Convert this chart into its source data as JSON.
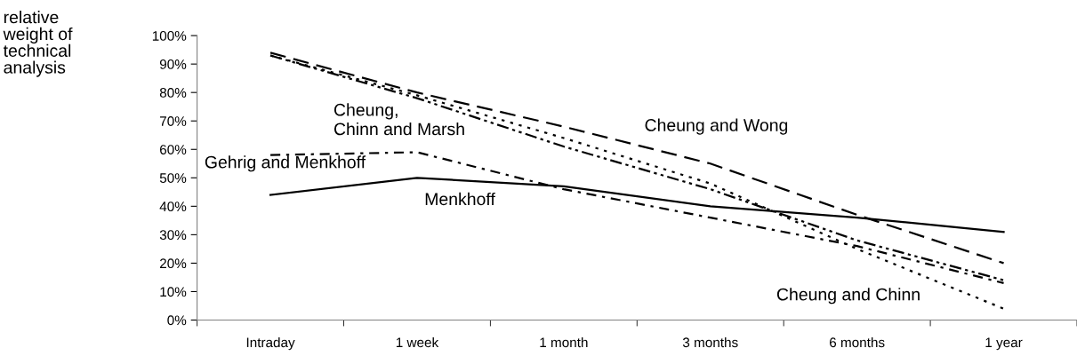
{
  "chart_data": {
    "type": "line",
    "ylabel": "relative weight of technical analysis",
    "categories": [
      "Intraday",
      "1 week",
      "1 month",
      "3 months",
      "6 months",
      "1 year"
    ],
    "series": [
      {
        "name": "Menkhoff",
        "color": "#000000",
        "line_style": "solid",
        "values": [
          44,
          50,
          47,
          40,
          36,
          31
        ]
      },
      {
        "name": "Cheung and Wong",
        "color": "#000000",
        "line_style": "dashed",
        "values": [
          94,
          80,
          68,
          55,
          37,
          20
        ]
      },
      {
        "name": "Cheung and Chinn",
        "color": "#000000",
        "line_style": "dotted",
        "values": [
          93,
          79,
          64,
          48,
          25,
          4
        ]
      },
      {
        "name": "Cheung,\nChinn and Marsh",
        "color": "#000000",
        "line_style": "dashdotdot",
        "values": [
          93,
          78,
          61,
          46,
          28,
          14
        ]
      },
      {
        "name": "Gehrig and Menkhoff",
        "color": "#000000",
        "line_style": "dashdot",
        "values": [
          58,
          59,
          46,
          36,
          26,
          13
        ]
      }
    ],
    "ylim": [
      0,
      100
    ],
    "yticks": [
      {
        "value": 0,
        "label": "0%"
      },
      {
        "value": 10,
        "label": "10%"
      },
      {
        "value": 20,
        "label": "20%"
      },
      {
        "value": 30,
        "label": "30%"
      },
      {
        "value": 40,
        "label": "40%"
      },
      {
        "value": 50,
        "label": "50%"
      },
      {
        "value": 60,
        "label": "60%"
      },
      {
        "value": 70,
        "label": "70%"
      },
      {
        "value": 80,
        "label": "80%"
      },
      {
        "value": 90,
        "label": "90%"
      },
      {
        "value": 100,
        "label": "100%"
      }
    ],
    "grid": false,
    "legend": false,
    "marker": "none"
  }
}
